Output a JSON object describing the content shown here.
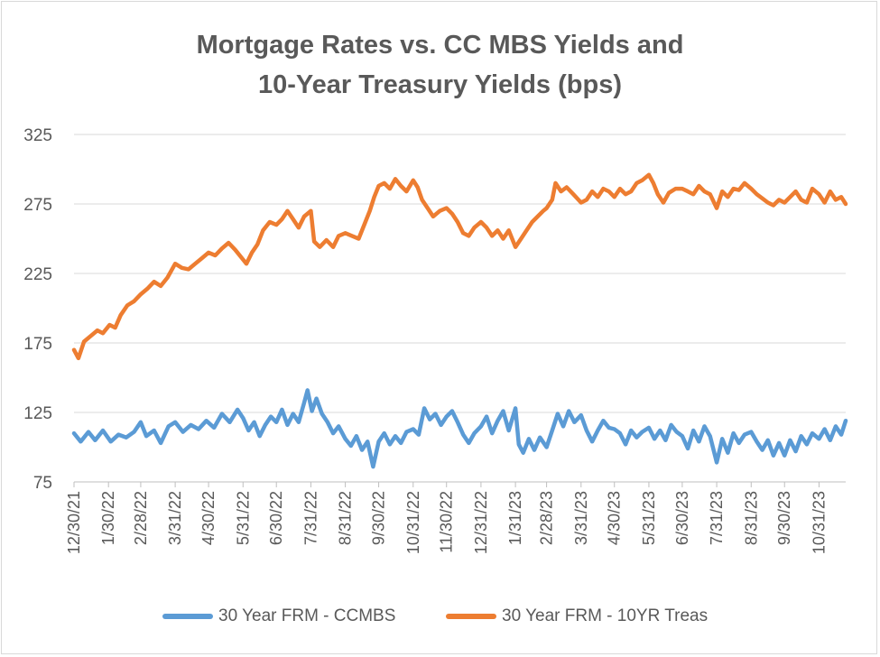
{
  "chart_data": {
    "type": "line",
    "title_line1": "Mortgage Rates vs. CC MBS Yields and",
    "title_line2": "10-Year Treasury Yields (bps)",
    "xlabel": "",
    "ylabel": "",
    "ylim": [
      75,
      325
    ],
    "yticks": [
      75,
      125,
      175,
      225,
      275,
      325
    ],
    "grid": true,
    "legend_position": "bottom",
    "x_start": "2021-12-30",
    "x_end": "2023-11-24",
    "x_ticks": [
      "12/30/21",
      "1/30/22",
      "2/28/22",
      "3/31/22",
      "4/30/22",
      "5/31/22",
      "6/30/22",
      "7/31/22",
      "8/31/22",
      "9/30/22",
      "10/31/22",
      "11/30/22",
      "12/31/22",
      "1/31/23",
      "2/28/23",
      "3/31/23",
      "4/30/23",
      "5/31/23",
      "6/30/23",
      "7/31/23",
      "8/31/23",
      "9/30/23",
      "10/31/23"
    ],
    "x_tick_dates": [
      "2021-12-30",
      "2022-01-30",
      "2022-02-28",
      "2022-03-31",
      "2022-04-30",
      "2022-05-31",
      "2022-06-30",
      "2022-07-31",
      "2022-08-31",
      "2022-09-30",
      "2022-10-31",
      "2022-11-30",
      "2022-12-31",
      "2023-01-31",
      "2023-02-28",
      "2023-03-31",
      "2023-04-30",
      "2023-05-31",
      "2023-06-30",
      "2023-07-31",
      "2023-08-31",
      "2023-09-30",
      "2023-10-31"
    ],
    "series": [
      {
        "name": "30 Year FRM - CCMBS",
        "color": "#5b9bd5",
        "points": [
          [
            "2021-12-30",
            110
          ],
          [
            "2022-01-05",
            104
          ],
          [
            "2022-01-12",
            111
          ],
          [
            "2022-01-18",
            105
          ],
          [
            "2022-01-25",
            112
          ],
          [
            "2022-02-01",
            104
          ],
          [
            "2022-02-08",
            109
          ],
          [
            "2022-02-15",
            107
          ],
          [
            "2022-02-22",
            111
          ],
          [
            "2022-02-28",
            118
          ],
          [
            "2022-03-05",
            108
          ],
          [
            "2022-03-12",
            112
          ],
          [
            "2022-03-18",
            103
          ],
          [
            "2022-03-25",
            115
          ],
          [
            "2022-03-31",
            118
          ],
          [
            "2022-04-07",
            111
          ],
          [
            "2022-04-14",
            116
          ],
          [
            "2022-04-21",
            113
          ],
          [
            "2022-04-28",
            119
          ],
          [
            "2022-05-05",
            114
          ],
          [
            "2022-05-12",
            124
          ],
          [
            "2022-05-19",
            118
          ],
          [
            "2022-05-26",
            127
          ],
          [
            "2022-05-31",
            121
          ],
          [
            "2022-06-05",
            112
          ],
          [
            "2022-06-10",
            118
          ],
          [
            "2022-06-15",
            108
          ],
          [
            "2022-06-20",
            116
          ],
          [
            "2022-06-25",
            122
          ],
          [
            "2022-06-30",
            118
          ],
          [
            "2022-07-05",
            127
          ],
          [
            "2022-07-10",
            116
          ],
          [
            "2022-07-15",
            124
          ],
          [
            "2022-07-20",
            118
          ],
          [
            "2022-07-25",
            132
          ],
          [
            "2022-07-28",
            141
          ],
          [
            "2022-08-01",
            126
          ],
          [
            "2022-08-05",
            135
          ],
          [
            "2022-08-10",
            124
          ],
          [
            "2022-08-15",
            118
          ],
          [
            "2022-08-20",
            110
          ],
          [
            "2022-08-25",
            115
          ],
          [
            "2022-08-31",
            106
          ],
          [
            "2022-09-05",
            101
          ],
          [
            "2022-09-10",
            108
          ],
          [
            "2022-09-15",
            98
          ],
          [
            "2022-09-20",
            104
          ],
          [
            "2022-09-25",
            86
          ],
          [
            "2022-09-30",
            104
          ],
          [
            "2022-10-05",
            110
          ],
          [
            "2022-10-10",
            102
          ],
          [
            "2022-10-15",
            108
          ],
          [
            "2022-10-20",
            103
          ],
          [
            "2022-10-25",
            111
          ],
          [
            "2022-10-31",
            113
          ],
          [
            "2022-11-05",
            109
          ],
          [
            "2022-11-10",
            128
          ],
          [
            "2022-11-15",
            120
          ],
          [
            "2022-11-20",
            124
          ],
          [
            "2022-11-25",
            116
          ],
          [
            "2022-11-30",
            122
          ],
          [
            "2022-12-05",
            126
          ],
          [
            "2022-12-10",
            118
          ],
          [
            "2022-12-15",
            109
          ],
          [
            "2022-12-20",
            103
          ],
          [
            "2022-12-25",
            110
          ],
          [
            "2022-12-31",
            115
          ],
          [
            "2023-01-05",
            122
          ],
          [
            "2023-01-10",
            110
          ],
          [
            "2023-01-15",
            119
          ],
          [
            "2023-01-20",
            126
          ],
          [
            "2023-01-25",
            112
          ],
          [
            "2023-01-31",
            128
          ],
          [
            "2023-02-03",
            102
          ],
          [
            "2023-02-07",
            96
          ],
          [
            "2023-02-12",
            106
          ],
          [
            "2023-02-17",
            98
          ],
          [
            "2023-02-22",
            107
          ],
          [
            "2023-02-28",
            100
          ],
          [
            "2023-03-05",
            112
          ],
          [
            "2023-03-10",
            124
          ],
          [
            "2023-03-15",
            115
          ],
          [
            "2023-03-20",
            126
          ],
          [
            "2023-03-25",
            118
          ],
          [
            "2023-03-31",
            123
          ],
          [
            "2023-04-05",
            112
          ],
          [
            "2023-04-10",
            104
          ],
          [
            "2023-04-15",
            112
          ],
          [
            "2023-04-20",
            119
          ],
          [
            "2023-04-25",
            114
          ],
          [
            "2023-04-30",
            113
          ],
          [
            "2023-05-05",
            110
          ],
          [
            "2023-05-10",
            102
          ],
          [
            "2023-05-15",
            112
          ],
          [
            "2023-05-20",
            107
          ],
          [
            "2023-05-25",
            111
          ],
          [
            "2023-05-31",
            114
          ],
          [
            "2023-06-05",
            106
          ],
          [
            "2023-06-10",
            112
          ],
          [
            "2023-06-15",
            105
          ],
          [
            "2023-06-20",
            116
          ],
          [
            "2023-06-25",
            111
          ],
          [
            "2023-06-30",
            108
          ],
          [
            "2023-07-05",
            99
          ],
          [
            "2023-07-10",
            112
          ],
          [
            "2023-07-15",
            104
          ],
          [
            "2023-07-20",
            115
          ],
          [
            "2023-07-25",
            108
          ],
          [
            "2023-07-31",
            89
          ],
          [
            "2023-08-05",
            106
          ],
          [
            "2023-08-10",
            96
          ],
          [
            "2023-08-15",
            110
          ],
          [
            "2023-08-20",
            103
          ],
          [
            "2023-08-25",
            109
          ],
          [
            "2023-08-31",
            111
          ],
          [
            "2023-09-05",
            104
          ],
          [
            "2023-09-10",
            98
          ],
          [
            "2023-09-15",
            105
          ],
          [
            "2023-09-20",
            94
          ],
          [
            "2023-09-25",
            103
          ],
          [
            "2023-09-30",
            94
          ],
          [
            "2023-10-05",
            105
          ],
          [
            "2023-10-10",
            97
          ],
          [
            "2023-10-15",
            108
          ],
          [
            "2023-10-20",
            102
          ],
          [
            "2023-10-25",
            110
          ],
          [
            "2023-10-31",
            106
          ],
          [
            "2023-11-05",
            113
          ],
          [
            "2023-11-10",
            105
          ],
          [
            "2023-11-15",
            115
          ],
          [
            "2023-11-20",
            109
          ],
          [
            "2023-11-24",
            119
          ]
        ]
      },
      {
        "name": "30 Year FRM - 10YR Treas",
        "color": "#ed7d31",
        "points": [
          [
            "2021-12-30",
            170
          ],
          [
            "2022-01-03",
            164
          ],
          [
            "2022-01-08",
            176
          ],
          [
            "2022-01-14",
            180
          ],
          [
            "2022-01-20",
            184
          ],
          [
            "2022-01-25",
            182
          ],
          [
            "2022-01-31",
            188
          ],
          [
            "2022-02-05",
            186
          ],
          [
            "2022-02-10",
            195
          ],
          [
            "2022-02-16",
            202
          ],
          [
            "2022-02-22",
            205
          ],
          [
            "2022-02-28",
            210
          ],
          [
            "2022-03-06",
            214
          ],
          [
            "2022-03-12",
            219
          ],
          [
            "2022-03-18",
            216
          ],
          [
            "2022-03-24",
            222
          ],
          [
            "2022-03-31",
            232
          ],
          [
            "2022-04-06",
            229
          ],
          [
            "2022-04-12",
            228
          ],
          [
            "2022-04-18",
            232
          ],
          [
            "2022-04-24",
            236
          ],
          [
            "2022-04-30",
            240
          ],
          [
            "2022-05-06",
            238
          ],
          [
            "2022-05-12",
            243
          ],
          [
            "2022-05-18",
            247
          ],
          [
            "2022-05-24",
            242
          ],
          [
            "2022-05-31",
            235
          ],
          [
            "2022-06-03",
            232
          ],
          [
            "2022-06-08",
            240
          ],
          [
            "2022-06-13",
            246
          ],
          [
            "2022-06-18",
            256
          ],
          [
            "2022-06-24",
            262
          ],
          [
            "2022-06-30",
            260
          ],
          [
            "2022-07-05",
            264
          ],
          [
            "2022-07-10",
            270
          ],
          [
            "2022-07-15",
            264
          ],
          [
            "2022-07-20",
            258
          ],
          [
            "2022-07-25",
            266
          ],
          [
            "2022-07-31",
            270
          ],
          [
            "2022-08-03",
            248
          ],
          [
            "2022-08-08",
            244
          ],
          [
            "2022-08-14",
            249
          ],
          [
            "2022-08-20",
            244
          ],
          [
            "2022-08-25",
            252
          ],
          [
            "2022-08-31",
            254
          ],
          [
            "2022-09-06",
            252
          ],
          [
            "2022-09-12",
            250
          ],
          [
            "2022-09-18",
            262
          ],
          [
            "2022-09-22",
            270
          ],
          [
            "2022-09-26",
            280
          ],
          [
            "2022-09-30",
            288
          ],
          [
            "2022-10-05",
            290
          ],
          [
            "2022-10-10",
            286
          ],
          [
            "2022-10-15",
            293
          ],
          [
            "2022-10-20",
            288
          ],
          [
            "2022-10-25",
            284
          ],
          [
            "2022-10-31",
            292
          ],
          [
            "2022-11-04",
            287
          ],
          [
            "2022-11-08",
            278
          ],
          [
            "2022-11-13",
            272
          ],
          [
            "2022-11-18",
            266
          ],
          [
            "2022-11-24",
            270
          ],
          [
            "2022-11-30",
            272
          ],
          [
            "2022-12-05",
            268
          ],
          [
            "2022-12-10",
            262
          ],
          [
            "2022-12-15",
            254
          ],
          [
            "2022-12-20",
            252
          ],
          [
            "2022-12-25",
            258
          ],
          [
            "2022-12-31",
            262
          ],
          [
            "2023-01-05",
            258
          ],
          [
            "2023-01-10",
            252
          ],
          [
            "2023-01-15",
            256
          ],
          [
            "2023-01-20",
            250
          ],
          [
            "2023-01-25",
            256
          ],
          [
            "2023-01-31",
            244
          ],
          [
            "2023-02-05",
            250
          ],
          [
            "2023-02-10",
            256
          ],
          [
            "2023-02-15",
            262
          ],
          [
            "2023-02-20",
            266
          ],
          [
            "2023-02-25",
            270
          ],
          [
            "2023-02-28",
            272
          ],
          [
            "2023-03-05",
            278
          ],
          [
            "2023-03-08",
            290
          ],
          [
            "2023-03-13",
            284
          ],
          [
            "2023-03-18",
            287
          ],
          [
            "2023-03-24",
            282
          ],
          [
            "2023-03-31",
            276
          ],
          [
            "2023-04-05",
            278
          ],
          [
            "2023-04-10",
            284
          ],
          [
            "2023-04-15",
            280
          ],
          [
            "2023-04-20",
            286
          ],
          [
            "2023-04-25",
            284
          ],
          [
            "2023-04-30",
            280
          ],
          [
            "2023-05-05",
            286
          ],
          [
            "2023-05-10",
            282
          ],
          [
            "2023-05-15",
            284
          ],
          [
            "2023-05-20",
            290
          ],
          [
            "2023-05-25",
            292
          ],
          [
            "2023-05-31",
            296
          ],
          [
            "2023-06-04",
            290
          ],
          [
            "2023-06-08",
            282
          ],
          [
            "2023-06-13",
            276
          ],
          [
            "2023-06-18",
            283
          ],
          [
            "2023-06-24",
            286
          ],
          [
            "2023-06-30",
            286
          ],
          [
            "2023-07-05",
            284
          ],
          [
            "2023-07-10",
            282
          ],
          [
            "2023-07-15",
            288
          ],
          [
            "2023-07-20",
            284
          ],
          [
            "2023-07-25",
            282
          ],
          [
            "2023-07-31",
            272
          ],
          [
            "2023-08-05",
            284
          ],
          [
            "2023-08-10",
            280
          ],
          [
            "2023-08-15",
            286
          ],
          [
            "2023-08-20",
            285
          ],
          [
            "2023-08-25",
            290
          ],
          [
            "2023-08-31",
            286
          ],
          [
            "2023-09-05",
            282
          ],
          [
            "2023-09-10",
            279
          ],
          [
            "2023-09-15",
            276
          ],
          [
            "2023-09-20",
            274
          ],
          [
            "2023-09-25",
            278
          ],
          [
            "2023-09-30",
            276
          ],
          [
            "2023-10-05",
            280
          ],
          [
            "2023-10-10",
            284
          ],
          [
            "2023-10-15",
            278
          ],
          [
            "2023-10-20",
            276
          ],
          [
            "2023-10-25",
            286
          ],
          [
            "2023-10-31",
            282
          ],
          [
            "2023-11-05",
            276
          ],
          [
            "2023-11-10",
            284
          ],
          [
            "2023-11-15",
            278
          ],
          [
            "2023-11-20",
            280
          ],
          [
            "2023-11-24",
            275
          ]
        ]
      }
    ]
  }
}
